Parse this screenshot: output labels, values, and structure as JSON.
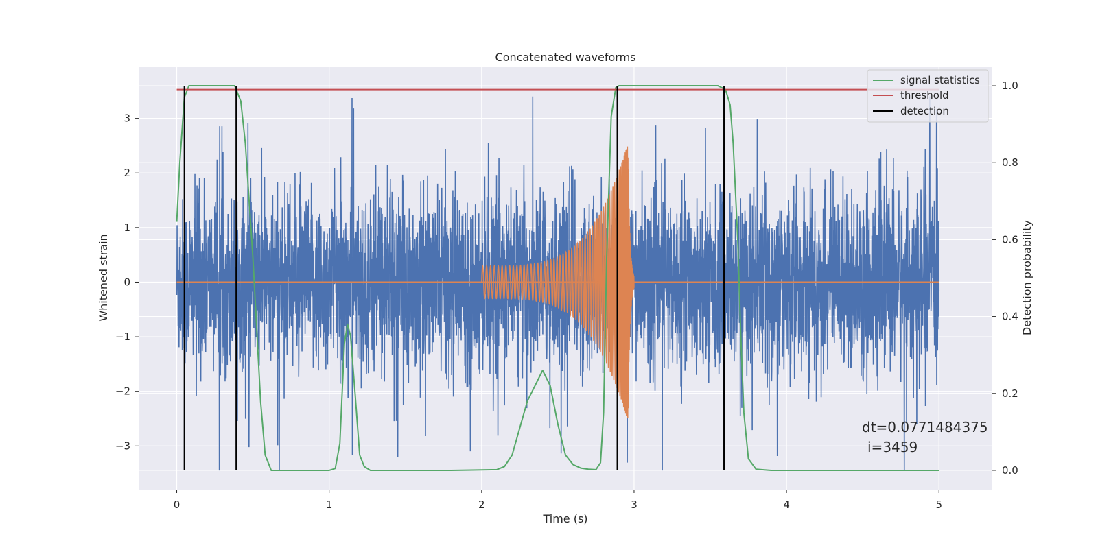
{
  "chart_data": {
    "type": "line",
    "title": "Concatenated waveforms",
    "xlabel": "Time (s)",
    "ylabel_left": "Whitened strain",
    "ylabel_right": "Detection probability",
    "xlim": [
      -0.25,
      5.35
    ],
    "ylim_left": [
      -3.8,
      3.95
    ],
    "ylim_right": [
      -0.05,
      1.05
    ],
    "x_ticks": [
      0,
      1,
      2,
      3,
      4,
      5
    ],
    "x_tick_labels": [
      "0",
      "1",
      "2",
      "3",
      "4",
      "5"
    ],
    "y_left_ticks": [
      3,
      2,
      1,
      0,
      -1,
      -2,
      -3
    ],
    "y_left_tick_labels": [
      "3",
      "2",
      "1",
      "0",
      "−1",
      "−2",
      "−3"
    ],
    "y_right_ticks": [
      1.0,
      0.8,
      0.6,
      0.4,
      0.2,
      0.0
    ],
    "y_right_tick_labels": [
      "1.0",
      "0.8",
      "0.6",
      "0.4",
      "0.2",
      "0.0"
    ],
    "grid": true,
    "legend_position": "top-right",
    "noise": {
      "color": "#4c72b0",
      "x_range": [
        0,
        5
      ],
      "typical_amplitude": 2.0,
      "max_peak": 3.4,
      "min_trough": -3.45
    },
    "chirp": {
      "color": "#dd8452",
      "x_start": 2.0,
      "x_end": 3.0,
      "amp_start": 0.3,
      "amp_peak": 2.55,
      "amp_peak_time": 2.96,
      "baseline": 0
    },
    "series": [
      {
        "name": "signal statistics",
        "axis": "right",
        "color": "#55a868",
        "x": [
          0,
          0.02,
          0.05,
          0.08,
          0.1,
          0.2,
          0.3,
          0.38,
          0.42,
          0.45,
          0.5,
          0.55,
          0.58,
          0.62,
          0.7,
          0.8,
          0.9,
          1.0,
          1.04,
          1.07,
          1.1,
          1.12,
          1.14,
          1.17,
          1.2,
          1.23,
          1.27,
          1.35,
          1.5,
          1.8,
          2.1,
          2.15,
          2.2,
          2.25,
          2.3,
          2.35,
          2.4,
          2.45,
          2.5,
          2.55,
          2.6,
          2.65,
          2.7,
          2.75,
          2.78,
          2.8,
          2.82,
          2.85,
          2.88,
          2.9,
          3.0,
          3.2,
          3.4,
          3.55,
          3.6,
          3.63,
          3.65,
          3.68,
          3.7,
          3.72,
          3.75,
          3.8,
          3.9,
          4.2,
          5.0
        ],
        "y": [
          0.646,
          0.8,
          0.97,
          1.0,
          1.0,
          1.0,
          1.0,
          1.0,
          0.96,
          0.85,
          0.55,
          0.18,
          0.04,
          0.0,
          0.0,
          0.0,
          0.0,
          0.0,
          0.005,
          0.07,
          0.33,
          0.38,
          0.35,
          0.2,
          0.04,
          0.01,
          0.0,
          0.0,
          0.0,
          0.0,
          0.002,
          0.01,
          0.04,
          0.11,
          0.18,
          0.22,
          0.26,
          0.22,
          0.12,
          0.04,
          0.015,
          0.006,
          0.003,
          0.002,
          0.02,
          0.15,
          0.55,
          0.92,
          0.995,
          1.0,
          1.0,
          1.0,
          1.0,
          1.0,
          0.99,
          0.95,
          0.85,
          0.6,
          0.35,
          0.15,
          0.03,
          0.003,
          0.0,
          0.0,
          0.0
        ]
      },
      {
        "name": "threshold",
        "axis": "right",
        "color": "#c44e52",
        "x": [
          0,
          5
        ],
        "y": [
          0.99,
          0.99
        ]
      },
      {
        "name": "detection",
        "axis": "right",
        "color": "#000000",
        "x": [
          0.05,
          0.39,
          2.89,
          3.59
        ],
        "y_from": 0.0,
        "y_to": 1.0
      }
    ],
    "annotations": [
      "dt=0.0771484375",
      "i=3459"
    ]
  }
}
